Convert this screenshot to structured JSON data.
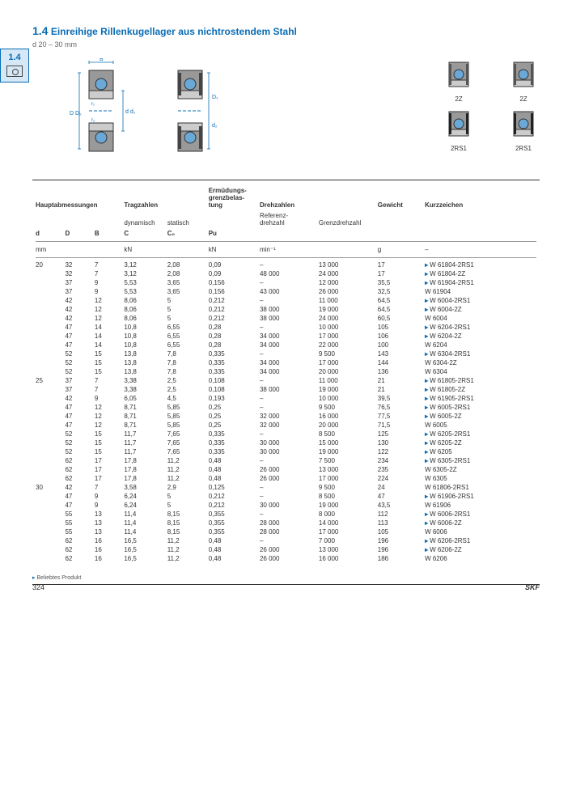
{
  "page": {
    "section_number": "1.4",
    "title_prefix": "1.4",
    "title": "Einreihige Rillenkugellager aus nichtrostendem Stahl",
    "subtitle": "d 20 – 30 mm",
    "page_number": "324",
    "brand": "SKF",
    "footnote": "Beliebtes Produkt"
  },
  "diagram_labels": {
    "zz": "2Z",
    "tworsone": "2RS1"
  },
  "headers": {
    "dims": "Hauptabmessungen",
    "load": "Tragzahlen",
    "dyn": "dynamisch",
    "stat": "statisch",
    "fatigue": "Ermüdungs-\ngrenzbelas-\ntung",
    "speeds": "Drehzahlen",
    "refspeed": "Referenz-\ndrehzahl",
    "limspeed": "Grenzdrehzahl",
    "mass": "Gewicht",
    "desig": "Kurzzeichen",
    "d": "d",
    "D": "D",
    "B": "B",
    "C": "C",
    "C0": "C₀",
    "Pu": "Pu",
    "unit_mm": "mm",
    "unit_kN": "kN",
    "unit_min": "min⁻¹",
    "unit_g": "g",
    "dash": "–"
  },
  "rows": [
    {
      "d": "20",
      "D": "32",
      "B": "7",
      "C": "3,12",
      "C0": "2,08",
      "Pu": "0,09",
      "ref": "–",
      "lim": "13 000",
      "m": "17",
      "desig": "W 61804-2RS1",
      "pop": true
    },
    {
      "d": "",
      "D": "32",
      "B": "7",
      "C": "3,12",
      "C0": "2,08",
      "Pu": "0,09",
      "ref": "48 000",
      "lim": "24 000",
      "m": "17",
      "desig": "W 61804-2Z",
      "pop": true
    },
    {
      "d": "",
      "D": "37",
      "B": "9",
      "C": "5,53",
      "C0": "3,65",
      "Pu": "0,156",
      "ref": "–",
      "lim": "12 000",
      "m": "35,5",
      "desig": "W 61904-2RS1",
      "pop": true
    },
    {
      "d": "",
      "D": "37",
      "B": "9",
      "C": "5,53",
      "C0": "3,65",
      "Pu": "0,156",
      "ref": "43 000",
      "lim": "26 000",
      "m": "32,5",
      "desig": "W 61904",
      "grp": true
    },
    {
      "d": "",
      "D": "42",
      "B": "12",
      "C": "8,06",
      "C0": "5",
      "Pu": "0,212",
      "ref": "–",
      "lim": "11 000",
      "m": "64,5",
      "desig": "W 6004-2RS1",
      "pop": true
    },
    {
      "d": "",
      "D": "42",
      "B": "12",
      "C": "8,06",
      "C0": "5",
      "Pu": "0,212",
      "ref": "38 000",
      "lim": "19 000",
      "m": "64,5",
      "desig": "W 6004-2Z",
      "pop": true
    },
    {
      "d": "",
      "D": "42",
      "B": "12",
      "C": "8,06",
      "C0": "5",
      "Pu": "0,212",
      "ref": "38 000",
      "lim": "24 000",
      "m": "60,5",
      "desig": "W 6004",
      "grp": true
    },
    {
      "d": "",
      "D": "47",
      "B": "14",
      "C": "10,8",
      "C0": "6,55",
      "Pu": "0,28",
      "ref": "–",
      "lim": "10 000",
      "m": "105",
      "desig": "W 6204-2RS1",
      "pop": true
    },
    {
      "d": "",
      "D": "47",
      "B": "14",
      "C": "10,8",
      "C0": "6,55",
      "Pu": "0,28",
      "ref": "34 000",
      "lim": "17 000",
      "m": "106",
      "desig": "W 6204-2Z",
      "pop": true
    },
    {
      "d": "",
      "D": "47",
      "B": "14",
      "C": "10,8",
      "C0": "6,55",
      "Pu": "0,28",
      "ref": "34 000",
      "lim": "22 000",
      "m": "100",
      "desig": "W 6204",
      "grp": true
    },
    {
      "d": "",
      "D": "52",
      "B": "15",
      "C": "13,8",
      "C0": "7,8",
      "Pu": "0,335",
      "ref": "–",
      "lim": "9 500",
      "m": "143",
      "desig": "W 6304-2RS1",
      "pop": true
    },
    {
      "d": "",
      "D": "52",
      "B": "15",
      "C": "13,8",
      "C0": "7,8",
      "Pu": "0,335",
      "ref": "34 000",
      "lim": "17 000",
      "m": "144",
      "desig": "W 6304-2Z"
    },
    {
      "d": "",
      "D": "52",
      "B": "15",
      "C": "13,8",
      "C0": "7,8",
      "Pu": "0,335",
      "ref": "34 000",
      "lim": "20 000",
      "m": "136",
      "desig": "W 6304",
      "grp": true
    },
    {
      "d": "25",
      "D": "37",
      "B": "7",
      "C": "3,38",
      "C0": "2,5",
      "Pu": "0,108",
      "ref": "–",
      "lim": "11 000",
      "m": "21",
      "desig": "W 61805-2RS1",
      "pop": true,
      "grp": true
    },
    {
      "d": "",
      "D": "37",
      "B": "7",
      "C": "3,38",
      "C0": "2,5",
      "Pu": "0,108",
      "ref": "38 000",
      "lim": "19 000",
      "m": "21",
      "desig": "W 61805-2Z",
      "pop": true
    },
    {
      "d": "",
      "D": "42",
      "B": "9",
      "C": "6,05",
      "C0": "4,5",
      "Pu": "0,193",
      "ref": "–",
      "lim": "10 000",
      "m": "39,5",
      "desig": "W 61905-2RS1",
      "pop": true
    },
    {
      "d": "",
      "D": "47",
      "B": "12",
      "C": "8,71",
      "C0": "5,85",
      "Pu": "0,25",
      "ref": "–",
      "lim": "9 500",
      "m": "76,5",
      "desig": "W 6005-2RS1",
      "pop": true,
      "grp": true
    },
    {
      "d": "",
      "D": "47",
      "B": "12",
      "C": "8,71",
      "C0": "5,85",
      "Pu": "0,25",
      "ref": "32 000",
      "lim": "16 000",
      "m": "77,5",
      "desig": "W 6005-2Z",
      "pop": true
    },
    {
      "d": "",
      "D": "47",
      "B": "12",
      "C": "8,71",
      "C0": "5,85",
      "Pu": "0,25",
      "ref": "32 000",
      "lim": "20 000",
      "m": "71,5",
      "desig": "W 6005"
    },
    {
      "d": "",
      "D": "52",
      "B": "15",
      "C": "11,7",
      "C0": "7,65",
      "Pu": "0,335",
      "ref": "–",
      "lim": "8 500",
      "m": "125",
      "desig": "W 6205-2RS1",
      "pop": true,
      "grp": true
    },
    {
      "d": "",
      "D": "52",
      "B": "15",
      "C": "11,7",
      "C0": "7,65",
      "Pu": "0,335",
      "ref": "30 000",
      "lim": "15 000",
      "m": "130",
      "desig": "W 6205-2Z",
      "pop": true
    },
    {
      "d": "",
      "D": "52",
      "B": "15",
      "C": "11,7",
      "C0": "7,65",
      "Pu": "0,335",
      "ref": "30 000",
      "lim": "19 000",
      "m": "122",
      "desig": "W 6205",
      "pop": true
    },
    {
      "d": "",
      "D": "62",
      "B": "17",
      "C": "17,8",
      "C0": "11,2",
      "Pu": "0,48",
      "ref": "–",
      "lim": "7 500",
      "m": "234",
      "desig": "W 6305-2RS1",
      "pop": true,
      "grp": true
    },
    {
      "d": "",
      "D": "62",
      "B": "17",
      "C": "17,8",
      "C0": "11,2",
      "Pu": "0,48",
      "ref": "26 000",
      "lim": "13 000",
      "m": "235",
      "desig": "W 6305-2Z"
    },
    {
      "d": "",
      "D": "62",
      "B": "17",
      "C": "17,8",
      "C0": "11,2",
      "Pu": "0,48",
      "ref": "26 000",
      "lim": "17 000",
      "m": "224",
      "desig": "W 6305"
    },
    {
      "d": "30",
      "D": "42",
      "B": "7",
      "C": "3,58",
      "C0": "2,9",
      "Pu": "0,125",
      "ref": "–",
      "lim": "9 500",
      "m": "24",
      "desig": "W 61806-2RS1",
      "grp": true
    },
    {
      "d": "",
      "D": "47",
      "B": "9",
      "C": "6,24",
      "C0": "5",
      "Pu": "0,212",
      "ref": "–",
      "lim": "8 500",
      "m": "47",
      "desig": "W 61906-2RS1",
      "pop": true
    },
    {
      "d": "",
      "D": "47",
      "B": "9",
      "C": "6,24",
      "C0": "5",
      "Pu": "0,212",
      "ref": "30 000",
      "lim": "19 000",
      "m": "43,5",
      "desig": "W 61906"
    },
    {
      "d": "",
      "D": "55",
      "B": "13",
      "C": "11,4",
      "C0": "8,15",
      "Pu": "0,355",
      "ref": "–",
      "lim": "8 000",
      "m": "112",
      "desig": "W 6006-2RS1",
      "pop": true,
      "grp": true
    },
    {
      "d": "",
      "D": "55",
      "B": "13",
      "C": "11,4",
      "C0": "8,15",
      "Pu": "0,355",
      "ref": "28 000",
      "lim": "14 000",
      "m": "113",
      "desig": "W 6006-2Z",
      "pop": true
    },
    {
      "d": "",
      "D": "55",
      "B": "13",
      "C": "11,4",
      "C0": "8,15",
      "Pu": "0,355",
      "ref": "28 000",
      "lim": "17 000",
      "m": "105",
      "desig": "W 6006"
    },
    {
      "d": "",
      "D": "62",
      "B": "16",
      "C": "16,5",
      "C0": "11,2",
      "Pu": "0,48",
      "ref": "–",
      "lim": "7 000",
      "m": "196",
      "desig": "W 6206-2RS1",
      "pop": true,
      "grp": true
    },
    {
      "d": "",
      "D": "62",
      "B": "16",
      "C": "16,5",
      "C0": "11,2",
      "Pu": "0,48",
      "ref": "26 000",
      "lim": "13 000",
      "m": "196",
      "desig": "W 6206-2Z",
      "pop": true
    },
    {
      "d": "",
      "D": "62",
      "B": "16",
      "C": "16,5",
      "C0": "11,2",
      "Pu": "0,48",
      "ref": "26 000",
      "lim": "16 000",
      "m": "186",
      "desig": "W 6206"
    }
  ],
  "colors": {
    "brand": "#0a6cb5",
    "steel": "#888",
    "light": "#d6e8f5"
  }
}
